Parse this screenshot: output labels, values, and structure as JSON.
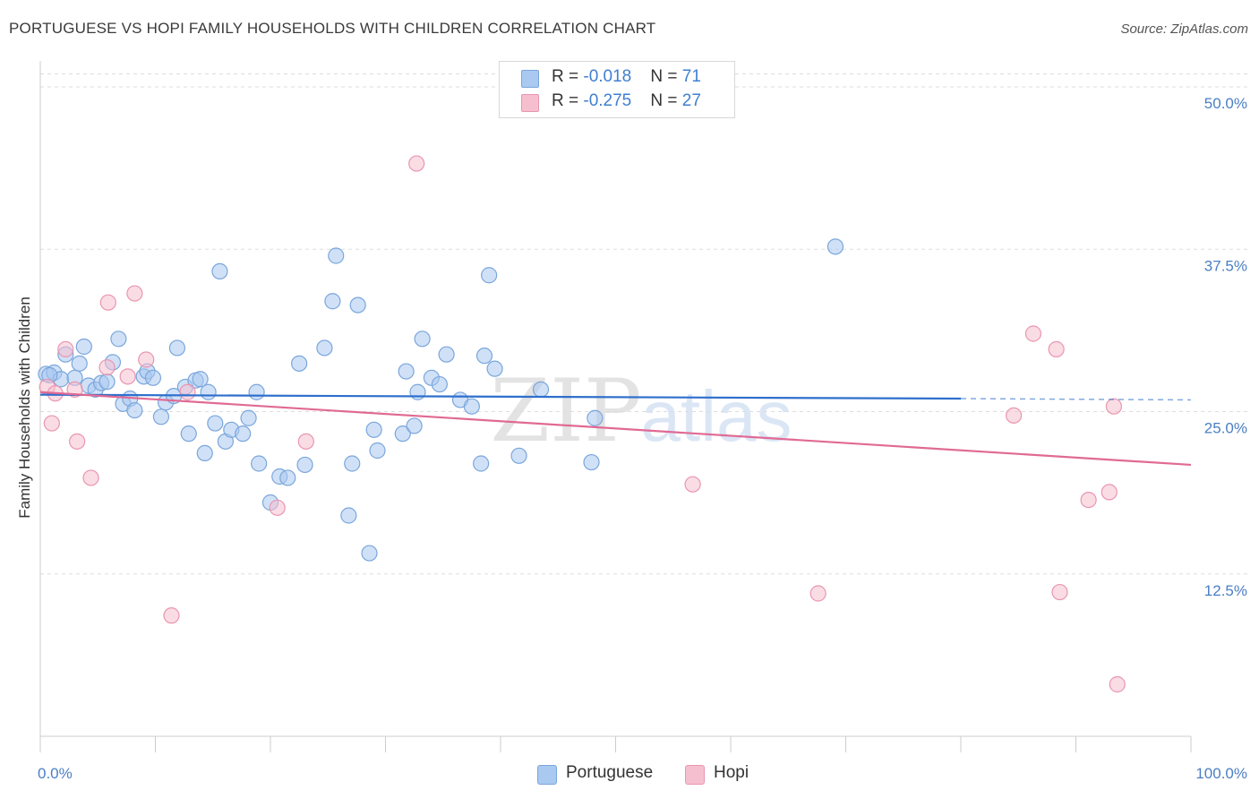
{
  "title": "PORTUGUESE VS HOPI FAMILY HOUSEHOLDS WITH CHILDREN CORRELATION CHART",
  "source": "Source: ZipAtlas.com",
  "watermark": {
    "zip": "ZIP",
    "atlas": "atlas"
  },
  "legend": {
    "portuguese": {
      "r_label": "R = ",
      "r_value": "-0.018",
      "n_label": "N = ",
      "n_value": "71"
    },
    "hopi": {
      "r_label": "R = ",
      "r_value": "-0.275",
      "n_label": "N = ",
      "n_value": "27"
    }
  },
  "chart_data": {
    "type": "scatter",
    "title": "PORTUGUESE VS HOPI FAMILY HOUSEHOLDS WITH CHILDREN CORRELATION CHART",
    "xlabel": "",
    "ylabel": "Family Households with Children",
    "xlim": [
      0,
      100
    ],
    "ylim": [
      0,
      52
    ],
    "x_tick_labels": [
      "0.0%",
      "100.0%"
    ],
    "y_ticks": [
      12.5,
      25.0,
      37.5,
      50.0
    ],
    "y_tick_labels": [
      "12.5%",
      "25.0%",
      "37.5%",
      "50.0%"
    ],
    "grid": true,
    "colors": {
      "portuguese_fill": "#a9c9f0",
      "portuguese_stroke": "#7aa6dc",
      "portuguese_line": "#2e6fcc",
      "hopi_fill": "#f6bfd0",
      "hopi_stroke": "#e996b0",
      "hopi_line": "#e06a93"
    },
    "series": [
      {
        "name": "Portuguese",
        "trend": {
          "x": [
            0,
            80
          ],
          "y": [
            26.3,
            26.0
          ],
          "dashed_to": [
            100,
            25.9
          ]
        },
        "points": [
          [
            0.5,
            27.9
          ],
          [
            1.2,
            28.0
          ],
          [
            1.8,
            27.5
          ],
          [
            2.2,
            29.4
          ],
          [
            3.0,
            27.6
          ],
          [
            3.4,
            28.7
          ],
          [
            3.8,
            30.0
          ],
          [
            4.2,
            27.0
          ],
          [
            4.8,
            26.7
          ],
          [
            5.3,
            27.2
          ],
          [
            5.8,
            27.3
          ],
          [
            6.3,
            28.8
          ],
          [
            6.8,
            30.6
          ],
          [
            7.2,
            25.6
          ],
          [
            7.8,
            26.0
          ],
          [
            8.2,
            25.1
          ],
          [
            9.0,
            27.7
          ],
          [
            9.3,
            28.1
          ],
          [
            9.8,
            27.6
          ],
          [
            10.5,
            24.6
          ],
          [
            10.9,
            25.7
          ],
          [
            11.6,
            26.2
          ],
          [
            11.9,
            29.9
          ],
          [
            12.6,
            26.9
          ],
          [
            12.9,
            23.3
          ],
          [
            13.5,
            27.4
          ],
          [
            13.9,
            27.5
          ],
          [
            14.3,
            21.8
          ],
          [
            14.6,
            26.5
          ],
          [
            15.2,
            24.1
          ],
          [
            15.6,
            35.8
          ],
          [
            16.1,
            22.7
          ],
          [
            16.6,
            23.6
          ],
          [
            17.6,
            23.3
          ],
          [
            18.1,
            24.5
          ],
          [
            18.8,
            26.5
          ],
          [
            19.0,
            21.0
          ],
          [
            20.0,
            18.0
          ],
          [
            20.8,
            20.0
          ],
          [
            21.5,
            19.9
          ],
          [
            22.5,
            28.7
          ],
          [
            23.0,
            20.9
          ],
          [
            24.7,
            29.9
          ],
          [
            25.4,
            33.5
          ],
          [
            25.7,
            37.0
          ],
          [
            26.8,
            17.0
          ],
          [
            27.1,
            21.0
          ],
          [
            27.6,
            33.2
          ],
          [
            28.6,
            14.1
          ],
          [
            29.0,
            23.6
          ],
          [
            29.3,
            22.0
          ],
          [
            31.5,
            23.3
          ],
          [
            31.8,
            28.1
          ],
          [
            32.5,
            23.9
          ],
          [
            32.8,
            26.5
          ],
          [
            33.2,
            30.6
          ],
          [
            34.0,
            27.6
          ],
          [
            34.7,
            27.1
          ],
          [
            35.3,
            29.4
          ],
          [
            36.5,
            25.9
          ],
          [
            37.5,
            25.4
          ],
          [
            38.3,
            21.0
          ],
          [
            38.6,
            29.3
          ],
          [
            39.0,
            35.5
          ],
          [
            39.5,
            28.3
          ],
          [
            41.6,
            21.6
          ],
          [
            43.5,
            26.7
          ],
          [
            47.9,
            21.1
          ],
          [
            48.2,
            24.5
          ],
          [
            69.1,
            37.7
          ],
          [
            0.8,
            27.8
          ]
        ]
      },
      {
        "name": "Hopi",
        "trend": {
          "x": [
            0,
            100
          ],
          "y": [
            26.5,
            20.9
          ]
        },
        "points": [
          [
            0.6,
            26.9
          ],
          [
            1.0,
            24.1
          ],
          [
            1.3,
            26.4
          ],
          [
            2.2,
            29.8
          ],
          [
            3.0,
            26.7
          ],
          [
            3.2,
            22.7
          ],
          [
            4.4,
            19.9
          ],
          [
            5.9,
            33.4
          ],
          [
            5.8,
            28.4
          ],
          [
            7.6,
            27.7
          ],
          [
            8.2,
            34.1
          ],
          [
            9.2,
            29.0
          ],
          [
            11.4,
            9.3
          ],
          [
            12.8,
            26.5
          ],
          [
            20.6,
            17.6
          ],
          [
            23.1,
            22.7
          ],
          [
            32.7,
            44.1
          ],
          [
            56.7,
            19.4
          ],
          [
            67.6,
            11.0
          ],
          [
            84.6,
            24.7
          ],
          [
            86.3,
            31.0
          ],
          [
            88.3,
            29.8
          ],
          [
            88.6,
            11.1
          ],
          [
            91.1,
            18.2
          ],
          [
            92.9,
            18.8
          ],
          [
            93.3,
            25.4
          ],
          [
            93.6,
            4.0
          ]
        ]
      }
    ]
  },
  "bottom_legend": {
    "portuguese": "Portuguese",
    "hopi": "Hopi"
  }
}
